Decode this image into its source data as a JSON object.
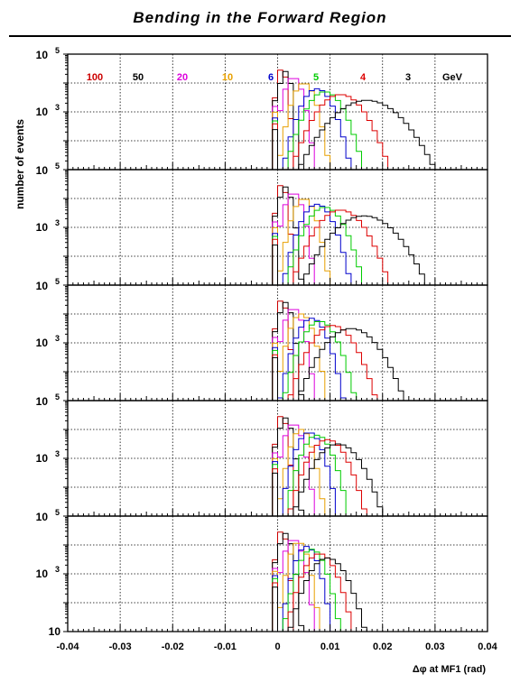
{
  "chart_data": {
    "type": "line",
    "title": "Bending in the Forward Region",
    "xlabel": "Δφ at MF1 (rad)",
    "ylabel": "number of events",
    "xlim": [
      -0.04,
      0.04
    ],
    "xticks": [
      "-0.04",
      "-0.03",
      "-0.02",
      "-0.01",
      "0",
      "0.01",
      "0.02",
      "0.03",
      "0.04"
    ],
    "ytick_labels": [
      "10 5",
      "10 3",
      "10"
    ],
    "ylim_log10": [
      1,
      5
    ],
    "grid": true,
    "legend_unit": "GeV",
    "series": [
      {
        "name": "100",
        "color": "#cc0000"
      },
      {
        "name": "50",
        "color": "#000000"
      },
      {
        "name": "20",
        "color": "#dd00dd"
      },
      {
        "name": "10",
        "color": "#e8a000"
      },
      {
        "name": "6",
        "color": "#0000cc"
      },
      {
        "name": "5",
        "color": "#00cc00"
      },
      {
        "name": "4",
        "color": "#dd0000"
      },
      {
        "name": "3",
        "color": "#000000"
      }
    ],
    "panels": [
      {
        "peaks": [
          {
            "name": "100",
            "mu": 0.0008,
            "sigma": 0.001,
            "amp": 4.5
          },
          {
            "name": "50",
            "mu": 0.0015,
            "sigma": 0.0012,
            "amp": 4.4
          },
          {
            "name": "20",
            "mu": 0.003,
            "sigma": 0.0018,
            "amp": 4.2
          },
          {
            "name": "10",
            "mu": 0.005,
            "sigma": 0.0022,
            "amp": 4.0
          },
          {
            "name": "6",
            "mu": 0.0075,
            "sigma": 0.003,
            "amp": 3.8
          },
          {
            "name": "5",
            "mu": 0.009,
            "sigma": 0.0035,
            "amp": 3.7
          },
          {
            "name": "4",
            "mu": 0.012,
            "sigma": 0.0045,
            "amp": 3.6
          },
          {
            "name": "3",
            "mu": 0.017,
            "sigma": 0.0065,
            "amp": 3.4
          }
        ]
      },
      {
        "peaks": [
          {
            "name": "100",
            "mu": 0.0008,
            "sigma": 0.001,
            "amp": 4.5
          },
          {
            "name": "50",
            "mu": 0.0015,
            "sigma": 0.0013,
            "amp": 4.4
          },
          {
            "name": "20",
            "mu": 0.003,
            "sigma": 0.0018,
            "amp": 4.2
          },
          {
            "name": "10",
            "mu": 0.005,
            "sigma": 0.0022,
            "amp": 4.0
          },
          {
            "name": "6",
            "mu": 0.0075,
            "sigma": 0.003,
            "amp": 3.8
          },
          {
            "name": "5",
            "mu": 0.009,
            "sigma": 0.0035,
            "amp": 3.7
          },
          {
            "name": "4",
            "mu": 0.012,
            "sigma": 0.0045,
            "amp": 3.6
          },
          {
            "name": "3",
            "mu": 0.0165,
            "sigma": 0.006,
            "amp": 3.4
          }
        ]
      },
      {
        "peaks": [
          {
            "name": "100",
            "mu": 0.0008,
            "sigma": 0.001,
            "amp": 4.5
          },
          {
            "name": "50",
            "mu": 0.0015,
            "sigma": 0.0013,
            "amp": 4.4
          },
          {
            "name": "20",
            "mu": 0.003,
            "sigma": 0.0018,
            "amp": 4.2
          },
          {
            "name": "10",
            "mu": 0.0045,
            "sigma": 0.0022,
            "amp": 4.0
          },
          {
            "name": "6",
            "mu": 0.0065,
            "sigma": 0.0028,
            "amp": 3.85
          },
          {
            "name": "5",
            "mu": 0.008,
            "sigma": 0.0032,
            "amp": 3.75
          },
          {
            "name": "4",
            "mu": 0.0105,
            "sigma": 0.004,
            "amp": 3.6
          },
          {
            "name": "3",
            "mu": 0.014,
            "sigma": 0.005,
            "amp": 3.5
          }
        ]
      },
      {
        "peaks": [
          {
            "name": "100",
            "mu": 0.0008,
            "sigma": 0.001,
            "amp": 4.5
          },
          {
            "name": "50",
            "mu": 0.0015,
            "sigma": 0.0013,
            "amp": 4.4
          },
          {
            "name": "20",
            "mu": 0.003,
            "sigma": 0.0018,
            "amp": 4.2
          },
          {
            "name": "10",
            "mu": 0.0045,
            "sigma": 0.002,
            "amp": 4.0
          },
          {
            "name": "6",
            "mu": 0.006,
            "sigma": 0.0025,
            "amp": 3.9
          },
          {
            "name": "5",
            "mu": 0.0075,
            "sigma": 0.0028,
            "amp": 3.8
          },
          {
            "name": "4",
            "mu": 0.0095,
            "sigma": 0.0035,
            "amp": 3.65
          },
          {
            "name": "3",
            "mu": 0.0115,
            "sigma": 0.0042,
            "amp": 3.5
          }
        ]
      },
      {
        "peaks": [
          {
            "name": "100",
            "mu": 0.0008,
            "sigma": 0.001,
            "amp": 4.5
          },
          {
            "name": "50",
            "mu": 0.0015,
            "sigma": 0.0013,
            "amp": 4.4
          },
          {
            "name": "20",
            "mu": 0.003,
            "sigma": 0.0018,
            "amp": 4.2
          },
          {
            "name": "10",
            "mu": 0.004,
            "sigma": 0.0018,
            "amp": 4.1
          },
          {
            "name": "6",
            "mu": 0.0055,
            "sigma": 0.0022,
            "amp": 3.95
          },
          {
            "name": "5",
            "mu": 0.0065,
            "sigma": 0.0025,
            "amp": 3.85
          },
          {
            "name": "4",
            "mu": 0.008,
            "sigma": 0.003,
            "amp": 3.7
          },
          {
            "name": "3",
            "mu": 0.0095,
            "sigma": 0.0035,
            "amp": 3.55
          }
        ]
      }
    ]
  }
}
